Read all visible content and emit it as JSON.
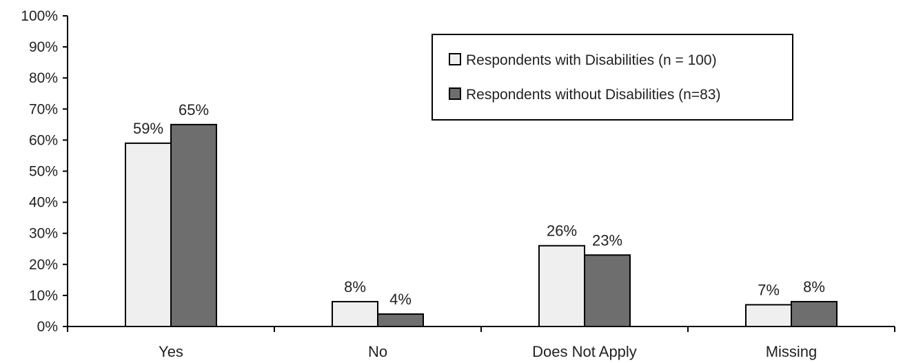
{
  "chart_data": {
    "type": "bar",
    "title": "",
    "xlabel": "",
    "ylabel": "",
    "categories": [
      "Yes",
      "No",
      "Does Not Apply",
      "Missing"
    ],
    "series": [
      {
        "name": "Respondents with Disabilities (n = 100)",
        "values": [
          59,
          8,
          26,
          7
        ],
        "labels": [
          "59%",
          "8%",
          "26%",
          "7%"
        ],
        "color": "#efefef"
      },
      {
        "name": "Respondents without Disabilities (n=83)",
        "values": [
          65,
          4,
          23,
          8
        ],
        "labels": [
          "65%",
          "4%",
          "23%",
          "8%"
        ],
        "color": "#6e6e6e"
      }
    ],
    "ylim": [
      0,
      100
    ],
    "yticks": [
      0,
      10,
      20,
      30,
      40,
      50,
      60,
      70,
      80,
      90,
      100
    ],
    "ytick_labels": [
      "0%",
      "10%",
      "20%",
      "30%",
      "40%",
      "50%",
      "60%",
      "70%",
      "80%",
      "90%",
      "100%"
    ],
    "grid": false,
    "legend_position": "top-right"
  }
}
